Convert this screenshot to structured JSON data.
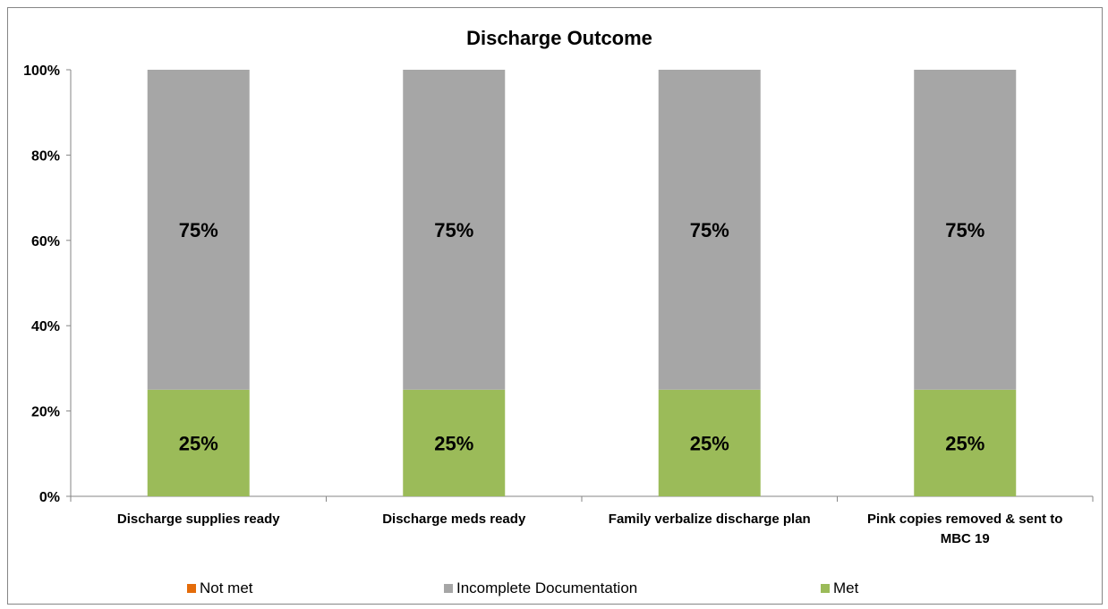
{
  "chart_data": {
    "type": "bar",
    "stacked": true,
    "percent": true,
    "title": "Discharge Outcome",
    "xlabel": "",
    "ylabel": "",
    "ylim": [
      0,
      100
    ],
    "y_ticks": [
      "0%",
      "20%",
      "40%",
      "60%",
      "80%",
      "100%"
    ],
    "y_tick_values": [
      0,
      20,
      40,
      60,
      80,
      100
    ],
    "grid": false,
    "legend_position": "bottom",
    "categories": [
      [
        "Discharge supplies ready"
      ],
      [
        "Discharge meds ready"
      ],
      [
        "Family verbalize discharge plan"
      ],
      [
        "Pink copies removed & sent to",
        "MBC 19"
      ]
    ],
    "series": [
      {
        "name": "Not met",
        "color": "#e46c0a",
        "values": [
          0,
          0,
          0,
          0
        ],
        "labels": [
          "",
          "",
          "",
          ""
        ]
      },
      {
        "name": "Incomplete Documentation",
        "color": "#a6a6a6",
        "values": [
          75,
          75,
          75,
          75
        ],
        "labels": [
          "75%",
          "75%",
          "75%",
          "75%"
        ]
      },
      {
        "name": "Met",
        "color": "#9bbb59",
        "values": [
          25,
          25,
          25,
          25
        ],
        "labels": [
          "25%",
          "25%",
          "25%",
          "25%"
        ]
      }
    ],
    "stack_order": [
      "Met",
      "Incomplete Documentation",
      "Not met"
    ]
  }
}
